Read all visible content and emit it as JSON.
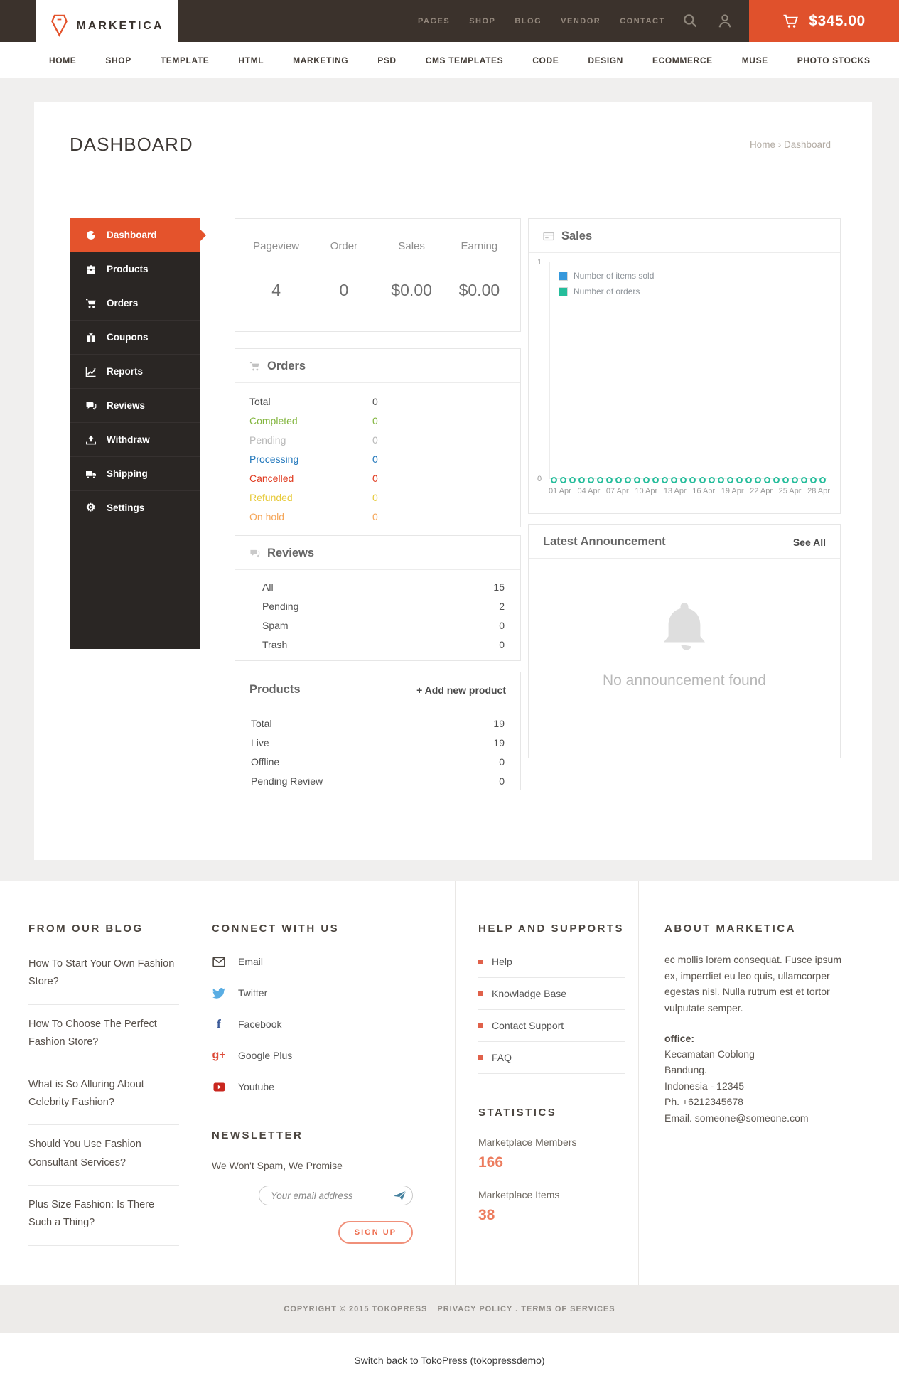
{
  "colors": {
    "accent": "#e4532c",
    "topbar_bg": "#3b322c",
    "sidebar_bg": "#2a2624",
    "page_bg": "#f0efee"
  },
  "topbar": {
    "brand": "MARKETICA",
    "nav": [
      "PAGES",
      "SHOP",
      "BLOG",
      "VENDOR",
      "CONTACT"
    ],
    "cart_total": "$345.00"
  },
  "mainnav": {
    "items": [
      "HOME",
      "SHOP",
      "TEMPLATE",
      "HTML",
      "MARKETING",
      "PSD",
      "CMS TEMPLATES",
      "CODE",
      "DESIGN",
      "ECOMMERCE",
      "MUSE",
      "PHOTO STOCKS"
    ]
  },
  "page": {
    "title": "DASHBOARD",
    "breadcrumb": "Home › Dashboard"
  },
  "sidebar": {
    "items": [
      {
        "label": "Dashboard",
        "icon": "dashboard-icon",
        "active": true
      },
      {
        "label": "Products",
        "icon": "briefcase-icon",
        "active": false
      },
      {
        "label": "Orders",
        "icon": "cart-icon",
        "active": false
      },
      {
        "label": "Coupons",
        "icon": "gift-icon",
        "active": false
      },
      {
        "label": "Reports",
        "icon": "chart-icon",
        "active": false
      },
      {
        "label": "Reviews",
        "icon": "comments-icon",
        "active": false
      },
      {
        "label": "Withdraw",
        "icon": "upload-icon",
        "active": false
      },
      {
        "label": "Shipping",
        "icon": "truck-icon",
        "active": false
      },
      {
        "label": "Settings",
        "icon": "gear-icon",
        "active": false
      }
    ]
  },
  "stats": {
    "columns": [
      {
        "label": "Pageview",
        "value": "4"
      },
      {
        "label": "Order",
        "value": "0"
      },
      {
        "label": "Sales",
        "value": "$0.00"
      },
      {
        "label": "Earning",
        "value": "$0.00"
      }
    ]
  },
  "orders_panel": {
    "title": "Orders",
    "rows": [
      {
        "label": "Total",
        "value": "0",
        "color": "#4f4f4f"
      },
      {
        "label": "Completed",
        "value": "0",
        "color": "#83b63f"
      },
      {
        "label": "Pending",
        "value": "0",
        "color": "#b9b9b9"
      },
      {
        "label": "Processing",
        "value": "0",
        "color": "#2277bb"
      },
      {
        "label": "Cancelled",
        "value": "0",
        "color": "#e03b20"
      },
      {
        "label": "Refunded",
        "value": "0",
        "color": "#e7ca3a"
      },
      {
        "label": "On hold",
        "value": "0",
        "color": "#f5a75b"
      }
    ]
  },
  "reviews_panel": {
    "title": "Reviews",
    "rows": [
      {
        "label": "All",
        "value": "15"
      },
      {
        "label": "Pending",
        "value": "2"
      },
      {
        "label": "Spam",
        "value": "0"
      },
      {
        "label": "Trash",
        "value": "0"
      }
    ]
  },
  "products_panel": {
    "title": "Products",
    "action": "+ Add new product",
    "rows": [
      {
        "label": "Total",
        "value": "19"
      },
      {
        "label": "Live",
        "value": "19"
      },
      {
        "label": "Offline",
        "value": "0"
      },
      {
        "label": "Pending Review",
        "value": "0"
      }
    ]
  },
  "sales_panel": {
    "title": "Sales"
  },
  "chart_data": {
    "type": "line",
    "title": "Sales",
    "legend_position": "top-left",
    "grid": false,
    "ylim": [
      0,
      1
    ],
    "y_tick_labels": [
      "1",
      "0"
    ],
    "x_tick_labels": [
      "01 Apr",
      "04 Apr",
      "07 Apr",
      "10 Apr",
      "13 Apr",
      "16 Apr",
      "19 Apr",
      "22 Apr",
      "25 Apr",
      "28 Apr"
    ],
    "series": [
      {
        "name": "Number of items sold",
        "color": "#3598dc",
        "values": []
      },
      {
        "name": "Number of orders",
        "color": "#25bd9b",
        "marker": "circle",
        "values": [
          0,
          0,
          0,
          0,
          0,
          0,
          0,
          0,
          0,
          0,
          0,
          0,
          0,
          0,
          0,
          0,
          0,
          0,
          0,
          0,
          0,
          0,
          0,
          0,
          0,
          0,
          0,
          0,
          0,
          0
        ]
      }
    ]
  },
  "announcement_panel": {
    "title": "Latest Announcement",
    "action": "See All",
    "empty_text": "No announcement found"
  },
  "footer": {
    "blog": {
      "heading": "FROM OUR BLOG",
      "posts": [
        "How To Start Your Own Fashion Store?",
        "How To Choose The Perfect Fashion Store?",
        "What is So Alluring About Celebrity Fashion?",
        "Should You Use Fashion Consultant Services?",
        "Plus Size Fashion: Is There Such a Thing?"
      ]
    },
    "connect": {
      "heading": "CONNECT WITH US",
      "links": [
        {
          "label": "Email",
          "icon": "email-icon"
        },
        {
          "label": "Twitter",
          "icon": "twitter-icon"
        },
        {
          "label": "Facebook",
          "icon": "facebook-icon"
        },
        {
          "label": "Google Plus",
          "icon": "google-plus-icon"
        },
        {
          "label": "Youtube",
          "icon": "youtube-icon"
        }
      ]
    },
    "newsletter": {
      "heading": "NEWSLETTER",
      "tagline": "We Won't Spam, We Promise",
      "placeholder": "Your email address",
      "button": "SIGN UP"
    },
    "help": {
      "heading": "HELP AND SUPPORTS",
      "links": [
        "Help",
        "Knowladge Base",
        "Contact Support",
        "FAQ"
      ]
    },
    "statistics": {
      "heading": "STATISTICS",
      "items": [
        {
          "label": "Marketplace Members",
          "value": "166"
        },
        {
          "label": "Marketplace Items",
          "value": "38"
        }
      ]
    },
    "about": {
      "heading": "ABOUT MARKETICA",
      "text": "ec mollis lorem consequat. Fusce ipsum ex, imperdiet eu leo quis, ullamcorper egestas nisl. Nulla rutrum est et tortor vulputate semper.",
      "office_label": "office:",
      "address": [
        "Kecamatan Coblong",
        "Bandung.",
        "Indonesia - 12345",
        "Ph. +6212345678",
        "Email. someone@someone.com"
      ]
    }
  },
  "bottom": {
    "copyright": "COPYRIGHT © 2015 TOKOPRESS",
    "links": "PRIVACY POLICY . TERMS OF SERVICES",
    "switch_back": "Switch back to TokoPress (tokopressdemo)"
  }
}
